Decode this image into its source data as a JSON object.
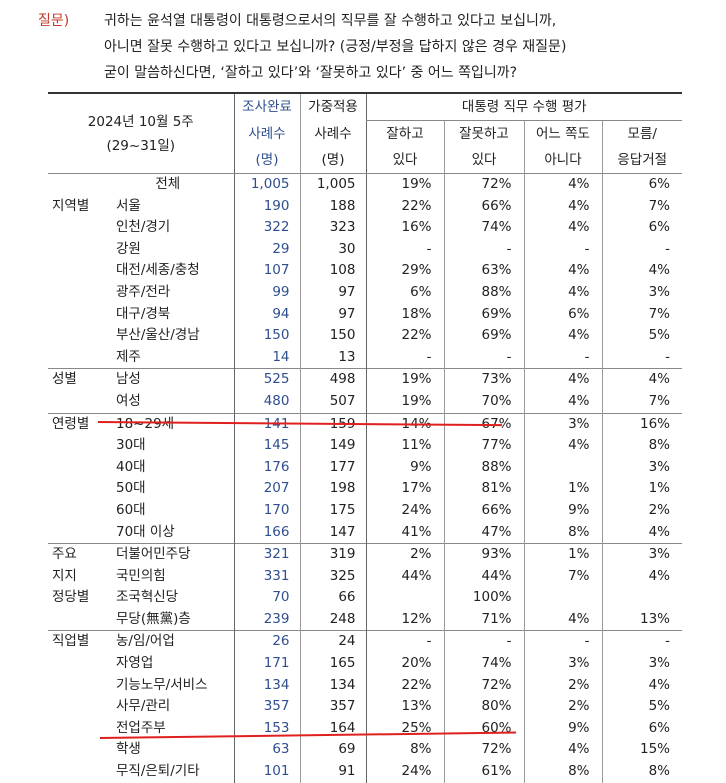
{
  "question": {
    "label": "질문)",
    "lines": [
      "귀하는 윤석열 대통령이 대통령으로서의 직무를 잘 수행하고 있다고 보십니까,",
      "아니면 잘못 수행하고 있다고 보십니까? (긍정/부정을 답하지 않은 경우 재질문)",
      "굳이 말씀하신다면, ‘잘하고 있다’와 ‘잘못하고 있다’ 중 어느 쪽입니까?"
    ]
  },
  "header": {
    "period_title": "2024년 10월 5주",
    "period_dates": "(29~31일)",
    "col_survey": [
      "조사완료",
      "사례수",
      "(명)"
    ],
    "col_weighted": [
      "가중적용",
      "사례수",
      "(명)"
    ],
    "group_title": "대통령 직무 수행 평가",
    "cols": [
      [
        "잘하고",
        "있다"
      ],
      [
        "잘못하고",
        "있다"
      ],
      [
        "어느 쪽도",
        "아니다"
      ],
      [
        "모름/",
        "응답거절"
      ]
    ]
  },
  "rows": [
    {
      "group": "",
      "cat": "전체",
      "n": "1,005",
      "w": "1,005",
      "v": [
        "19%",
        "72%",
        "4%",
        "6%"
      ],
      "total": true
    },
    {
      "group": "지역별",
      "cat": "서울",
      "n": "190",
      "w": "188",
      "v": [
        "22%",
        "66%",
        "4%",
        "7%"
      ]
    },
    {
      "group": "",
      "cat": "인천/경기",
      "n": "322",
      "w": "323",
      "v": [
        "16%",
        "74%",
        "4%",
        "6%"
      ]
    },
    {
      "group": "",
      "cat": "강원",
      "n": "29",
      "w": "30",
      "v": [
        "-",
        "-",
        "-",
        "-"
      ]
    },
    {
      "group": "",
      "cat": "대전/세종/충청",
      "n": "107",
      "w": "108",
      "v": [
        "29%",
        "63%",
        "4%",
        "4%"
      ]
    },
    {
      "group": "",
      "cat": "광주/전라",
      "n": "99",
      "w": "97",
      "v": [
        "6%",
        "88%",
        "4%",
        "3%"
      ]
    },
    {
      "group": "",
      "cat": "대구/경북",
      "n": "94",
      "w": "97",
      "v": [
        "18%",
        "69%",
        "6%",
        "7%"
      ]
    },
    {
      "group": "",
      "cat": "부산/울산/경남",
      "n": "150",
      "w": "150",
      "v": [
        "22%",
        "69%",
        "4%",
        "5%"
      ]
    },
    {
      "group": "",
      "cat": "제주",
      "n": "14",
      "w": "13",
      "v": [
        "-",
        "-",
        "-",
        "-"
      ]
    },
    {
      "group": "성별",
      "cat": "남성",
      "n": "525",
      "w": "498",
      "v": [
        "19%",
        "73%",
        "4%",
        "4%"
      ],
      "sep": true
    },
    {
      "group": "",
      "cat": "여성",
      "n": "480",
      "w": "507",
      "v": [
        "19%",
        "70%",
        "4%",
        "7%"
      ]
    },
    {
      "group": "연령별",
      "cat": "18~29세",
      "n": "141",
      "w": "159",
      "v": [
        "14%",
        "67%",
        "3%",
        "16%"
      ],
      "sep": true
    },
    {
      "group": "",
      "cat": "30대",
      "n": "145",
      "w": "149",
      "v": [
        "11%",
        "77%",
        "4%",
        "8%"
      ]
    },
    {
      "group": "",
      "cat": "40대",
      "n": "176",
      "w": "177",
      "v": [
        "9%",
        "88%",
        "",
        "3%"
      ]
    },
    {
      "group": "",
      "cat": "50대",
      "n": "207",
      "w": "198",
      "v": [
        "17%",
        "81%",
        "1%",
        "1%"
      ]
    },
    {
      "group": "",
      "cat": "60대",
      "n": "170",
      "w": "175",
      "v": [
        "24%",
        "66%",
        "9%",
        "2%"
      ]
    },
    {
      "group": "",
      "cat": "70대 이상",
      "n": "166",
      "w": "147",
      "v": [
        "41%",
        "47%",
        "8%",
        "4%"
      ]
    },
    {
      "group": "주요",
      "cat": "더불어민주당",
      "n": "321",
      "w": "319",
      "v": [
        "2%",
        "93%",
        "1%",
        "3%"
      ],
      "sep": true
    },
    {
      "group": "지지",
      "cat": "국민의힘",
      "n": "331",
      "w": "325",
      "v": [
        "44%",
        "44%",
        "7%",
        "4%"
      ]
    },
    {
      "group": "정당별",
      "cat": "조국혁신당",
      "n": "70",
      "w": "66",
      "v": [
        "",
        "100%",
        "",
        ""
      ]
    },
    {
      "group": "",
      "cat": "무당(無黨)층",
      "n": "239",
      "w": "248",
      "v": [
        "12%",
        "71%",
        "4%",
        "13%"
      ]
    },
    {
      "group": "직업별",
      "cat": "농/임/어업",
      "n": "26",
      "w": "24",
      "v": [
        "-",
        "-",
        "-",
        "-"
      ],
      "sep": true
    },
    {
      "group": "",
      "cat": "자영업",
      "n": "171",
      "w": "165",
      "v": [
        "20%",
        "74%",
        "3%",
        "3%"
      ]
    },
    {
      "group": "",
      "cat": "기능노무/서비스",
      "n": "134",
      "w": "134",
      "v": [
        "22%",
        "72%",
        "2%",
        "4%"
      ]
    },
    {
      "group": "",
      "cat": "사무/관리",
      "n": "357",
      "w": "357",
      "v": [
        "13%",
        "80%",
        "2%",
        "5%"
      ]
    },
    {
      "group": "",
      "cat": "전업주부",
      "n": "153",
      "w": "164",
      "v": [
        "25%",
        "60%",
        "9%",
        "6%"
      ]
    },
    {
      "group": "",
      "cat": "학생",
      "n": "63",
      "w": "69",
      "v": [
        "8%",
        "72%",
        "4%",
        "15%"
      ]
    },
    {
      "group": "",
      "cat": "무직/은퇴/기타",
      "n": "101",
      "w": "91",
      "v": [
        "24%",
        "61%",
        "8%",
        "8%"
      ]
    }
  ],
  "colors": {
    "question_label": "#c0392b",
    "sample_count": "#2f4f8f",
    "underline": "#e0201e"
  }
}
